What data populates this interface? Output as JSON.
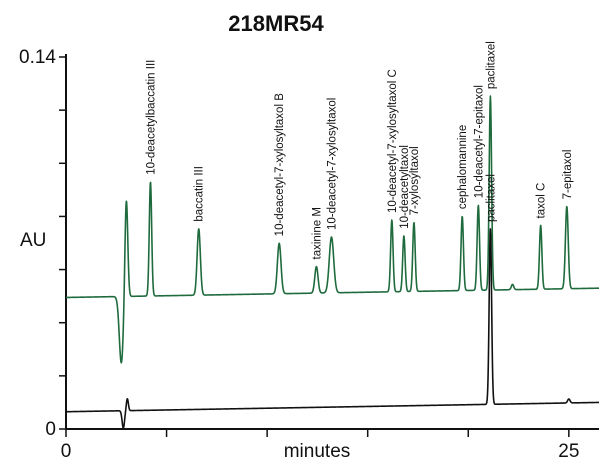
{
  "chart_data": {
    "type": "line",
    "title": "218MR54",
    "xlabel": "minutes",
    "ylabel": "AU",
    "xlim": [
      0,
      26.5
    ],
    "x_ticks": [
      0,
      5,
      10,
      15,
      20,
      25
    ],
    "x_tick_labels": [
      "0",
      "25"
    ],
    "x_tick_label_values": [
      0,
      25
    ],
    "y_tick_labels": [
      "0",
      "0.14"
    ],
    "y_tick_label_values": [
      0,
      0.14
    ],
    "y_minor_ticks": [
      0,
      0.02,
      0.04,
      0.06,
      0.08,
      0.1,
      0.12,
      0.14
    ],
    "ylim": [
      0,
      0.14
    ],
    "colors": {
      "upper_trace": "#1f6b3d",
      "lower_trace": "#111111",
      "axis": "#111111"
    },
    "series": [
      {
        "baseline": 0.0495,
        "drift": 0.0035,
        "dip": {
          "x": 2.75,
          "depth": 0.025,
          "width": 0.1
        },
        "peaks": [
          {
            "label": "",
            "x": 3.0,
            "height": 0.037,
            "width": 0.07
          },
          {
            "label": "10-deacetylbaccatin III",
            "x": 4.2,
            "height": 0.043,
            "width": 0.06
          },
          {
            "label": "baccatin III",
            "x": 6.6,
            "height": 0.025,
            "width": 0.08
          },
          {
            "label": "10-deacetyl-7-xylosyltaxol B",
            "x": 10.6,
            "height": 0.019,
            "width": 0.09
          },
          {
            "label": "taxinine M",
            "x": 12.45,
            "height": 0.01,
            "width": 0.08
          },
          {
            "label": "10-deacetyl-7-xylosyltaxol",
            "x": 13.2,
            "height": 0.021,
            "width": 0.11
          },
          {
            "label": "10-deacetyl-7-xylosyltaxol C",
            "x": 16.2,
            "height": 0.027,
            "width": 0.06
          },
          {
            "label": "10-deacetyltaxol",
            "x": 16.8,
            "height": 0.021,
            "width": 0.06
          },
          {
            "label": "7-xylosyltaxol",
            "x": 17.3,
            "height": 0.026,
            "width": 0.06
          },
          {
            "label": "cephalomannine",
            "x": 19.7,
            "height": 0.028,
            "width": 0.06
          },
          {
            "label": "10-deacetyl-7-epitaxol",
            "x": 20.5,
            "height": 0.032,
            "width": 0.06
          },
          {
            "label": "paclitaxel",
            "x": 21.1,
            "height": 0.073,
            "width": 0.06
          },
          {
            "label": "",
            "x": 22.2,
            "height": 0.002,
            "width": 0.06
          },
          {
            "label": "taxol C",
            "x": 23.6,
            "height": 0.024,
            "width": 0.06
          },
          {
            "label": "7-epitaxol",
            "x": 24.9,
            "height": 0.031,
            "width": 0.07
          }
        ]
      },
      {
        "baseline": 0.0065,
        "drift": 0.0035,
        "dip": {
          "x": 2.85,
          "depth": 0.0065,
          "width": 0.06
        },
        "peaks": [
          {
            "label": "",
            "x": 3.05,
            "height": 0.0045,
            "width": 0.05
          },
          {
            "label": "paclitaxel",
            "x": 21.1,
            "height": 0.066,
            "width": 0.06
          },
          {
            "label": "",
            "x": 25.0,
            "height": 0.0015,
            "width": 0.06
          }
        ]
      }
    ]
  }
}
